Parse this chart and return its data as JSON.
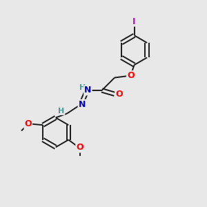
{
  "background_color": "#e8e8e8",
  "bond_color": "#1a1a1a",
  "atom_colors": {
    "O": "#ff0000",
    "N": "#0000cc",
    "I": "#cc00cc",
    "H": "#4a9a9a",
    "C": "#1a1a1a"
  },
  "figsize": [
    3.0,
    3.0
  ],
  "dpi": 100
}
